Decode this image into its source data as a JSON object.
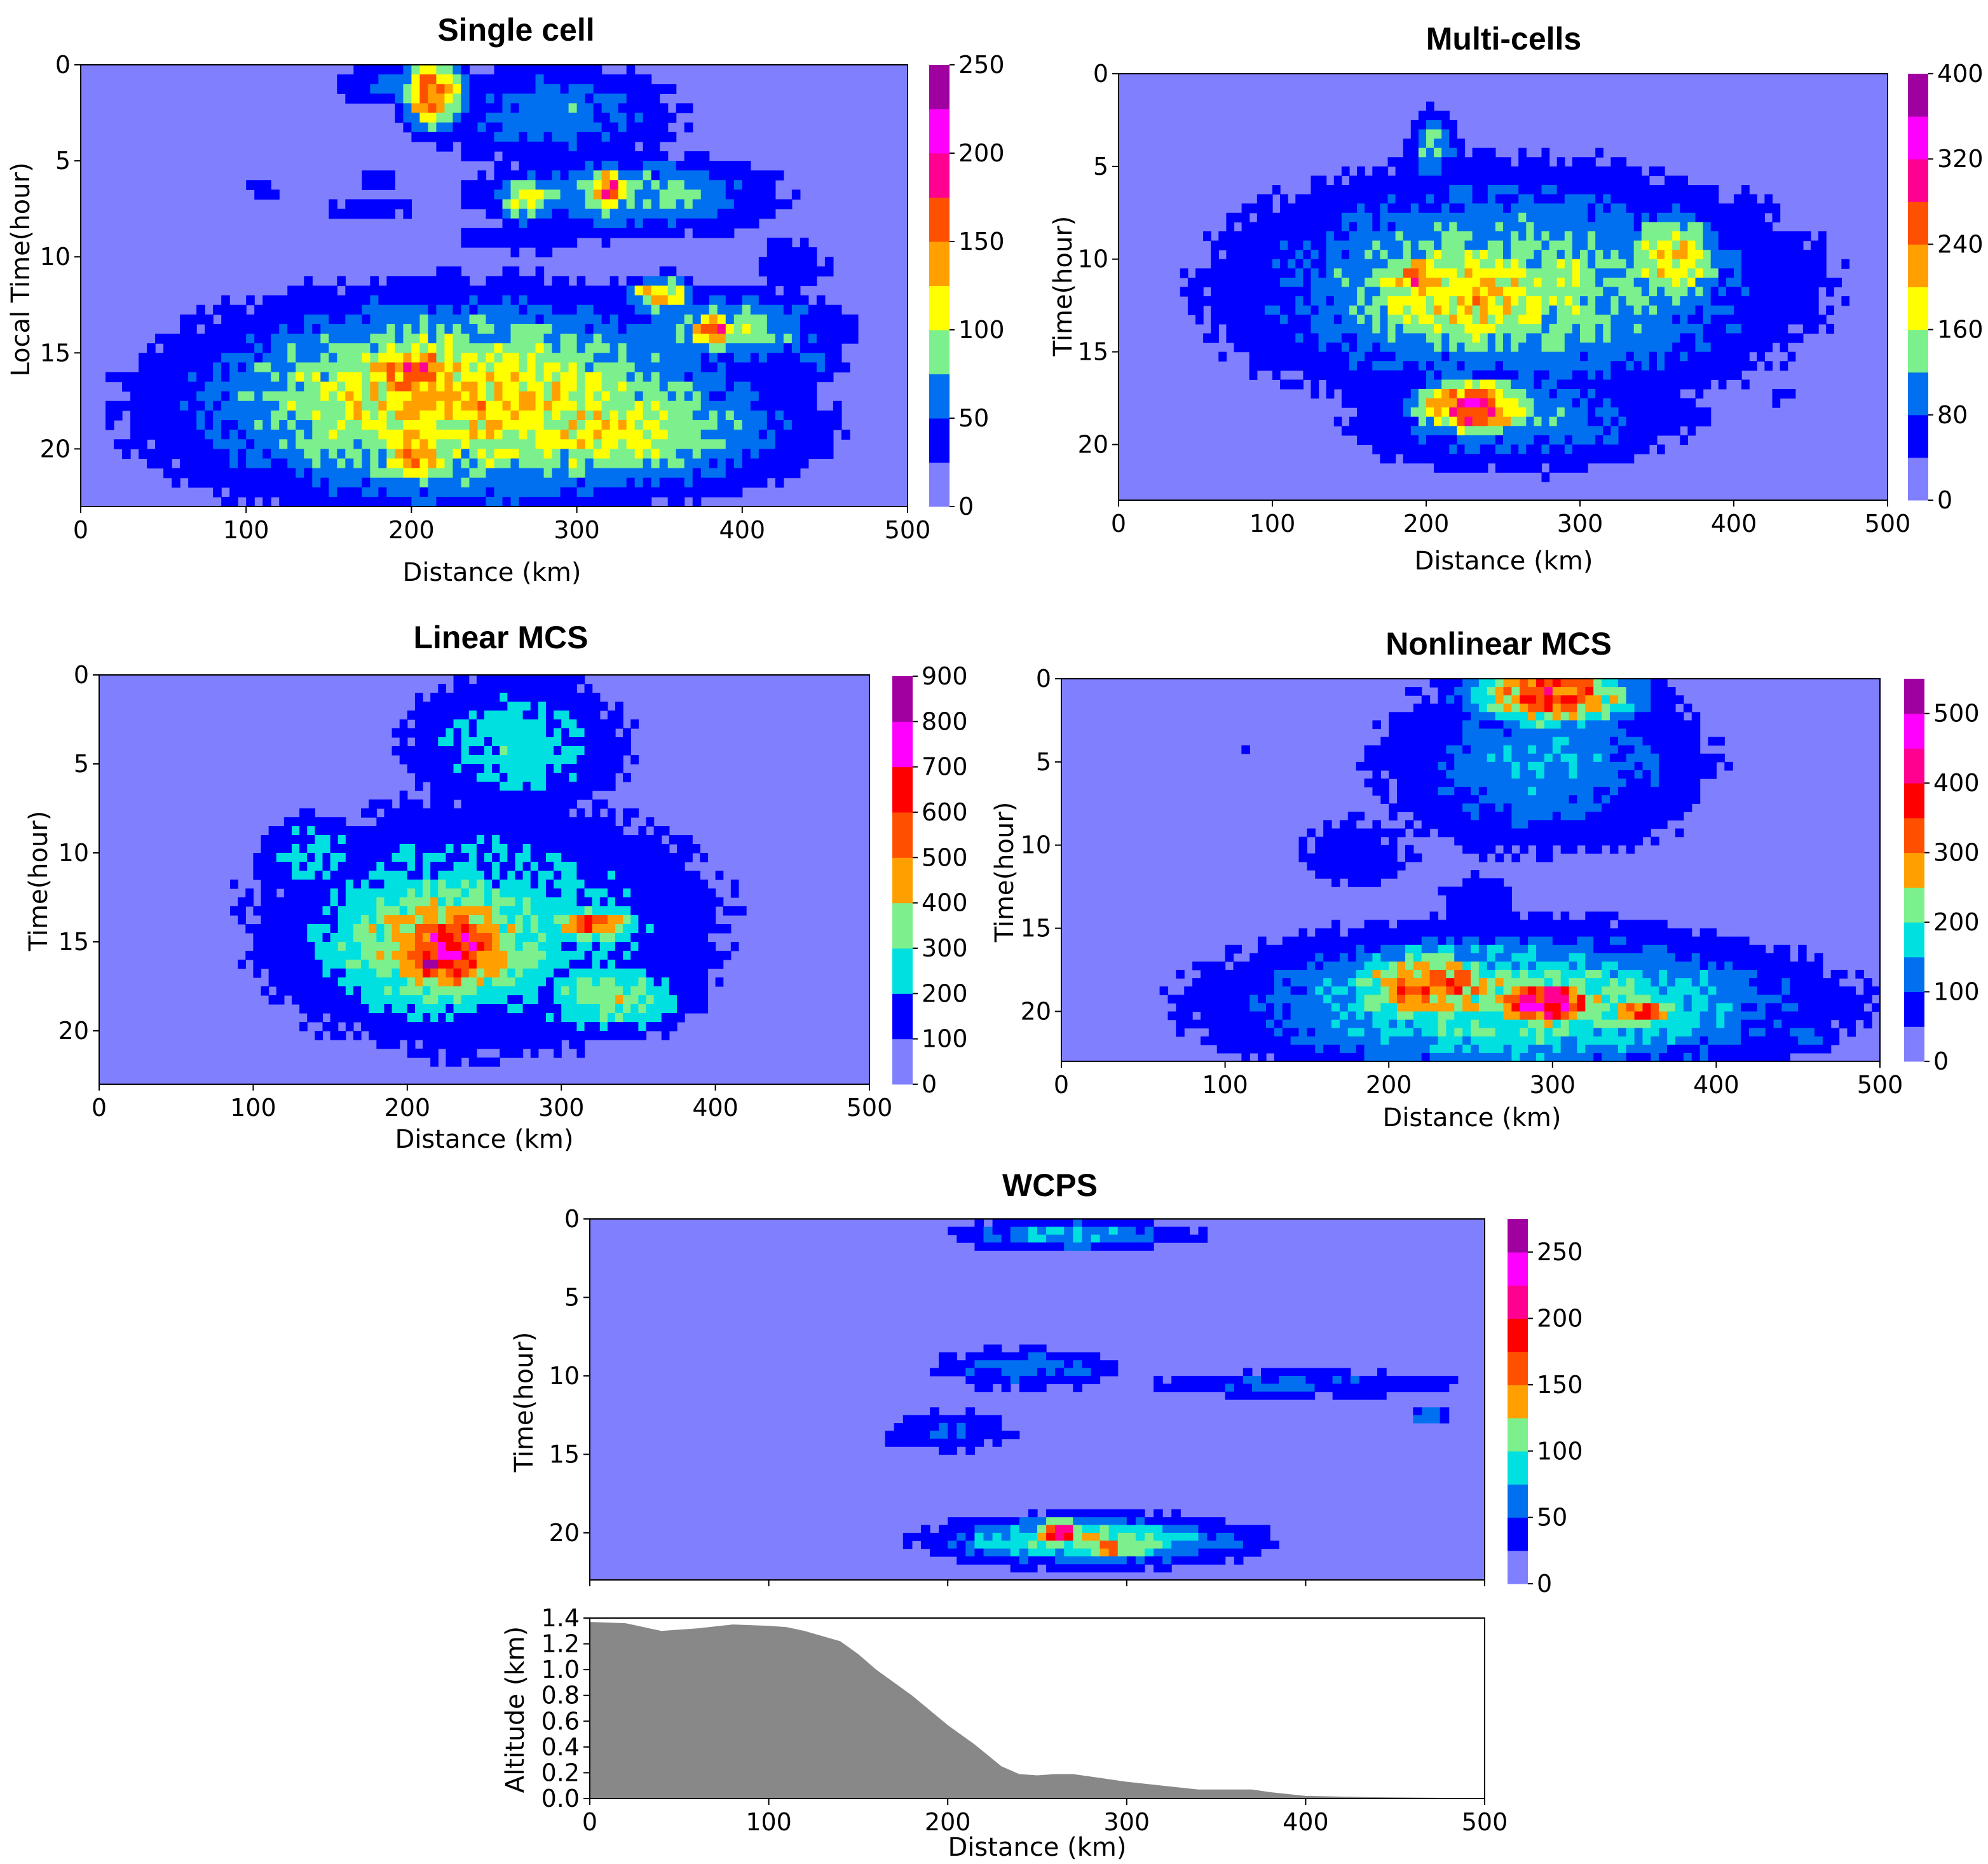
{
  "chart_data": [
    {
      "type": "heatmap",
      "title": "Single cell",
      "xlabel": "Distance (km)",
      "ylabel": "Local Time(hour)",
      "xlim": [
        0,
        500
      ],
      "ylim": [
        23,
        0
      ],
      "xticks": [
        0,
        100,
        200,
        300,
        400,
        500
      ],
      "yticks": [
        0,
        5,
        10,
        15,
        20
      ],
      "colorbar": {
        "levels": [
          0,
          25,
          50,
          75,
          100,
          125,
          150,
          175,
          200,
          225,
          250
        ],
        "ticks": [
          0,
          50,
          100,
          150,
          200,
          250
        ]
      },
      "blobs": [
        {
          "x": 232,
          "y": 17.5,
          "rx": 175,
          "ry": 5.5,
          "peak": 125
        },
        {
          "x": 310,
          "y": 19,
          "rx": 130,
          "ry": 3.5,
          "peak": 110
        },
        {
          "x": 200,
          "y": 16,
          "rx": 40,
          "ry": 2.2,
          "peak": 165
        },
        {
          "x": 205,
          "y": 20.5,
          "rx": 30,
          "ry": 1.5,
          "peak": 150
        },
        {
          "x": 120,
          "y": 16.5,
          "rx": 50,
          "ry": 2.5,
          "peak": 70
        },
        {
          "x": 392,
          "y": 13.8,
          "rx": 70,
          "ry": 2.2,
          "peak": 90
        },
        {
          "x": 382,
          "y": 13.8,
          "rx": 14,
          "ry": 0.8,
          "peak": 205
        },
        {
          "x": 350,
          "y": 12,
          "rx": 20,
          "ry": 1.0,
          "peak": 150
        },
        {
          "x": 440,
          "y": 15.5,
          "rx": 30,
          "ry": 1.0,
          "peak": 55
        },
        {
          "x": 430,
          "y": 10.5,
          "rx": 35,
          "ry": 2.0,
          "peak": 40
        },
        {
          "x": 330,
          "y": 6.8,
          "rx": 95,
          "ry": 2.2,
          "peak": 85
        },
        {
          "x": 318,
          "y": 6.5,
          "rx": 14,
          "ry": 1.1,
          "peak": 175
        },
        {
          "x": 270,
          "y": 7,
          "rx": 22,
          "ry": 1.5,
          "peak": 110
        },
        {
          "x": 285,
          "y": 2.5,
          "rx": 85,
          "ry": 3,
          "peak": 65
        },
        {
          "x": 213,
          "y": 1.5,
          "rx": 20,
          "ry": 2.0,
          "peak": 175
        },
        {
          "x": 188,
          "y": 1.0,
          "rx": 38,
          "ry": 1.3,
          "peak": 60
        },
        {
          "x": 175,
          "y": 7.5,
          "rx": 45,
          "ry": 0.8,
          "peak": 40
        },
        {
          "x": 265,
          "y": 9.0,
          "rx": 55,
          "ry": 1.0,
          "peak": 45
        },
        {
          "x": 110,
          "y": 6.5,
          "rx": 20,
          "ry": 1.0,
          "peak": 35
        },
        {
          "x": 180,
          "y": 6.0,
          "rx": 15,
          "ry": 0.9,
          "peak": 40
        },
        {
          "x": 35,
          "y": 15.8,
          "rx": 8,
          "ry": 0.7,
          "peak": 30
        }
      ]
    },
    {
      "type": "heatmap",
      "title": "Multi-cells",
      "xlabel": "Distance (km)",
      "ylabel": "Time(hour)",
      "xlim": [
        0,
        500
      ],
      "ylim": [
        23,
        0
      ],
      "xticks": [
        0,
        100,
        200,
        300,
        400,
        500
      ],
      "yticks": [
        0,
        5,
        10,
        15,
        20
      ],
      "colorbar": {
        "levels": [
          0,
          40,
          80,
          120,
          160,
          200,
          240,
          280,
          320,
          360,
          400
        ],
        "ticks": [
          0,
          80,
          160,
          240,
          320,
          400
        ]
      },
      "blobs": [
        {
          "x": 255,
          "y": 11.5,
          "rx": 190,
          "ry": 6.5,
          "peak": 150
        },
        {
          "x": 230,
          "y": 12,
          "rx": 100,
          "ry": 4,
          "peak": 200
        },
        {
          "x": 195,
          "y": 11,
          "rx": 20,
          "ry": 1.4,
          "peak": 280
        },
        {
          "x": 360,
          "y": 10,
          "rx": 40,
          "ry": 2.8,
          "peak": 200
        },
        {
          "x": 232,
          "y": 18,
          "rx": 42,
          "ry": 1.6,
          "peak": 300
        },
        {
          "x": 260,
          "y": 18.5,
          "rx": 120,
          "ry": 3.2,
          "peak": 110
        },
        {
          "x": 205,
          "y": 4,
          "rx": 18,
          "ry": 2.2,
          "peak": 130
        },
        {
          "x": 100,
          "y": 11,
          "rx": 60,
          "ry": 2.2,
          "peak": 40
        },
        {
          "x": 430,
          "y": 17.5,
          "rx": 25,
          "ry": 0.8,
          "peak": 45
        },
        {
          "x": 340,
          "y": 1.0,
          "rx": 40,
          "ry": 1.0,
          "peak": 35
        }
      ]
    },
    {
      "type": "heatmap",
      "title": "Linear MCS",
      "xlabel": "Distance (km)",
      "ylabel": "Time(hour)",
      "xlim": [
        0,
        500
      ],
      "ylim": [
        23,
        0
      ],
      "xticks": [
        0,
        100,
        200,
        300,
        400,
        500
      ],
      "yticks": [
        0,
        5,
        10,
        15,
        20
      ],
      "colorbar": {
        "levels": [
          0,
          100,
          200,
          300,
          400,
          500,
          600,
          700,
          800,
          900
        ],
        "ticks": [
          0,
          100,
          200,
          300,
          400,
          500,
          600,
          700,
          800,
          900
        ]
      },
      "blobs": [
        {
          "x": 250,
          "y": 14,
          "rx": 170,
          "ry": 8,
          "peak": 260
        },
        {
          "x": 225,
          "y": 15,
          "rx": 95,
          "ry": 5,
          "peak": 450
        },
        {
          "x": 230,
          "y": 15.5,
          "rx": 50,
          "ry": 2.8,
          "peak": 700
        },
        {
          "x": 215,
          "y": 16.2,
          "rx": 14,
          "ry": 1.0,
          "peak": 880
        },
        {
          "x": 320,
          "y": 14,
          "rx": 30,
          "ry": 1.0,
          "peak": 620
        },
        {
          "x": 270,
          "y": 4,
          "rx": 80,
          "ry": 4.5,
          "peak": 260
        },
        {
          "x": 330,
          "y": 18,
          "rx": 60,
          "ry": 2.5,
          "peak": 350
        },
        {
          "x": 140,
          "y": 10,
          "rx": 40,
          "ry": 2.5,
          "peak": 250
        }
      ]
    },
    {
      "type": "heatmap",
      "title": "Nonlinear MCS",
      "xlabel": "Distance (km)",
      "ylabel": "Time(hour)",
      "xlim": [
        0,
        500
      ],
      "ylim": [
        23,
        0
      ],
      "xticks": [
        0,
        100,
        200,
        300,
        400,
        500
      ],
      "yticks": [
        0,
        5,
        10,
        15,
        20
      ],
      "colorbar": {
        "levels": [
          0,
          50,
          100,
          150,
          200,
          250,
          300,
          350,
          400,
          450,
          500,
          550
        ],
        "ticks": [
          0,
          100,
          200,
          300,
          400,
          500
        ]
      },
      "blobs": [
        {
          "x": 280,
          "y": 19.5,
          "rx": 180,
          "ry": 4.5,
          "peak": 230
        },
        {
          "x": 225,
          "y": 18.5,
          "rx": 60,
          "ry": 2.5,
          "peak": 330
        },
        {
          "x": 295,
          "y": 19.5,
          "rx": 38,
          "ry": 1.6,
          "peak": 450
        },
        {
          "x": 355,
          "y": 20,
          "rx": 22,
          "ry": 0.9,
          "peak": 380
        },
        {
          "x": 295,
          "y": 5,
          "rx": 110,
          "ry": 6,
          "peak": 140
        },
        {
          "x": 300,
          "y": 1.0,
          "rx": 55,
          "ry": 2.2,
          "peak": 360
        },
        {
          "x": 180,
          "y": 10.5,
          "rx": 60,
          "ry": 3.5,
          "peak": 70
        },
        {
          "x": 255,
          "y": 13.5,
          "rx": 35,
          "ry": 2.5,
          "peak": 80
        },
        {
          "x": 110,
          "y": 4,
          "rx": 40,
          "ry": 1.0,
          "peak": 50
        },
        {
          "x": 105,
          "y": 19.5,
          "rx": 60,
          "ry": 1.5,
          "peak": 70
        },
        {
          "x": 455,
          "y": 21.5,
          "rx": 15,
          "ry": 1.0,
          "peak": 150
        }
      ]
    },
    {
      "type": "heatmap",
      "title": "WCPS",
      "xlabel": "",
      "ylabel": "Time(hour)",
      "xlim": [
        0,
        500
      ],
      "ylim": [
        23,
        0
      ],
      "xticks": [
        0,
        100,
        200,
        300,
        400,
        500
      ],
      "yticks": [
        0,
        5,
        10,
        15,
        20
      ],
      "colorbar": {
        "levels": [
          0,
          25,
          50,
          75,
          100,
          125,
          150,
          175,
          200,
          225,
          250,
          275
        ],
        "ticks": [
          0,
          50,
          100,
          150,
          200,
          250
        ]
      },
      "blobs": [
        {
          "x": 280,
          "y": 20.5,
          "rx": 85,
          "ry": 1.6,
          "peak": 120
        },
        {
          "x": 263,
          "y": 20,
          "rx": 14,
          "ry": 1.0,
          "peak": 225
        },
        {
          "x": 290,
          "y": 21,
          "rx": 18,
          "ry": 0.7,
          "peak": 160
        },
        {
          "x": 200,
          "y": 13.5,
          "rx": 50,
          "ry": 1.5,
          "peak": 50
        },
        {
          "x": 245,
          "y": 9.5,
          "rx": 55,
          "ry": 1.5,
          "peak": 65
        },
        {
          "x": 395,
          "y": 10.5,
          "rx": 100,
          "ry": 1.0,
          "peak": 55
        },
        {
          "x": 470,
          "y": 12.5,
          "rx": 12,
          "ry": 0.6,
          "peak": 80
        },
        {
          "x": 270,
          "y": 1.0,
          "rx": 70,
          "ry": 1.0,
          "peak": 80
        },
        {
          "x": 150,
          "y": 8.5,
          "rx": 14,
          "ry": 0.4,
          "peak": 35
        }
      ]
    },
    {
      "type": "area",
      "title": "",
      "xlabel": "Distance (km)",
      "ylabel": "Altitude (km)",
      "xlim": [
        0,
        500
      ],
      "ylim": [
        0,
        1.4
      ],
      "xticks": [
        0,
        100,
        200,
        300,
        400,
        500
      ],
      "yticks": [
        0.0,
        0.2,
        0.4,
        0.6,
        0.8,
        1.0,
        1.2,
        1.4
      ],
      "ytick_labels": [
        "0.0",
        "0.2",
        "0.4",
        "0.6",
        "0.8",
        "1.0",
        "1.2",
        "1.4"
      ],
      "x": [
        0,
        20,
        40,
        60,
        80,
        100,
        110,
        120,
        140,
        150,
        160,
        180,
        200,
        215,
        230,
        240,
        250,
        260,
        270,
        280,
        300,
        320,
        340,
        360,
        370,
        380,
        400,
        440,
        480,
        500
      ],
      "y": [
        1.37,
        1.36,
        1.3,
        1.32,
        1.35,
        1.34,
        1.33,
        1.3,
        1.22,
        1.12,
        1.0,
        0.8,
        0.57,
        0.42,
        0.25,
        0.19,
        0.18,
        0.19,
        0.19,
        0.17,
        0.13,
        0.1,
        0.07,
        0.07,
        0.07,
        0.05,
        0.02,
        0.01,
        0.005,
        0.0
      ]
    }
  ]
}
